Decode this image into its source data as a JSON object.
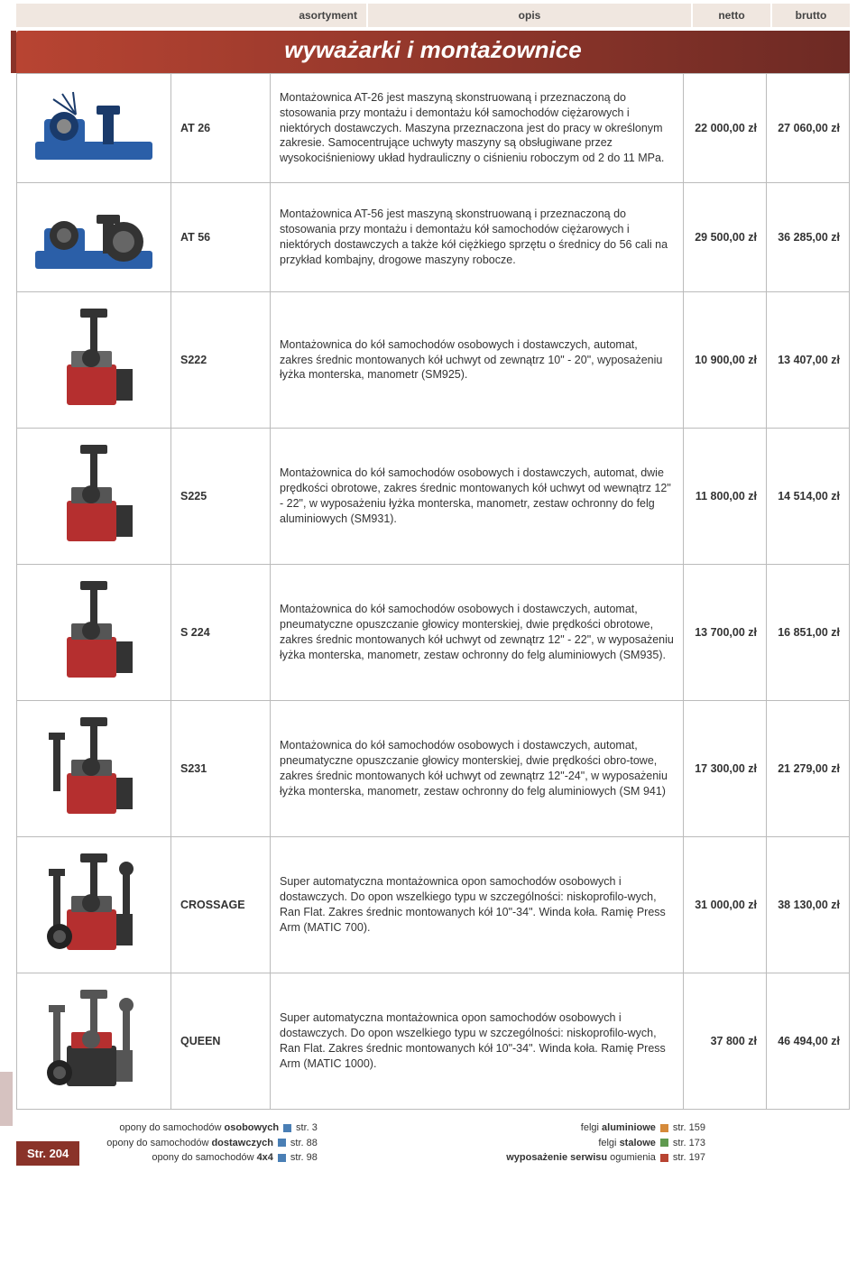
{
  "header": {
    "asortyment": "asortyment",
    "opis": "opis",
    "netto": "netto",
    "brutto": "brutto"
  },
  "section_title": "wyważarki i montażownice",
  "rows": [
    {
      "code": "AT 26",
      "desc": "Montażownica AT-26 jest maszyną skonstruowaną i przeznaczoną do stosowania przy montażu i demontażu kół samochodów ciężarowych i niektórych dostawczych. Maszyna przeznaczona jest do pracy w określonym zakresie. Samocentrujące uchwyty maszyny są obsługiwane przez wysokociśnieniowy układ hydrauliczny o ciśnieniu roboczym od 2 do 11 MPa.",
      "netto": "22 000,00 zł",
      "brutto": "27 060,00 zł",
      "img_colors": [
        "#2b5fa8",
        "#1a3a6a",
        "#888"
      ]
    },
    {
      "code": "AT 56",
      "desc": "Montażownica AT-56 jest maszyną skonstruowaną i przeznaczoną do stosowania przy montażu i demontażu kół samochodów ciężarowych i niektórych dostawczych a także kół ciężkiego sprzętu o średnicy do 56 cali na przykład kombajny, drogowe maszyny robocze.",
      "netto": "29 500,00 zł",
      "brutto": "36 285,00 zł",
      "img_colors": [
        "#2b5fa8",
        "#333",
        "#666"
      ]
    },
    {
      "code": "S222",
      "desc": "Montażownica do kół samochodów osobowych i dostawczych, automat, zakres średnic montowanych kół uchwyt od zewnątrz 10\" - 20\", wyposażeniu łyżka monterska, manometr (SM925).",
      "netto": "10 900,00 zł",
      "brutto": "13 407,00 zł",
      "img_colors": [
        "#b52f2f",
        "#333",
        "#666"
      ]
    },
    {
      "code": "S225",
      "desc": "Montażownica do kół samochodów osobowych i dostawczych, automat, dwie prędkości obrotowe, zakres średnic montowanych kół uchwyt od wewnątrz 12\" - 22\", w wyposażeniu łyżka monterska, manometr, zestaw ochronny do felg aluminiowych (SM931).",
      "netto": "11 800,00 zł",
      "brutto": "14 514,00 zł",
      "img_colors": [
        "#b52f2f",
        "#333",
        "#555"
      ]
    },
    {
      "code": "S 224",
      "desc": "Montażownica do kół samochodów osobowych i dostawczych, automat, pneumatyczne opuszczanie głowicy monterskiej, dwie prędkości obrotowe, zakres średnic montowanych kół uchwyt od zewnątrz 12\" - 22\", w wyposażeniu łyżka monterska, manometr, zestaw ochronny do felg aluminiowych (SM935).",
      "netto": "13 700,00 zł",
      "brutto": "16 851,00 zł",
      "img_colors": [
        "#b52f2f",
        "#333",
        "#555"
      ]
    },
    {
      "code": "S231",
      "desc": "Montażownica do kół samochodów osobowych i dostawczych, automat, pneumatyczne opuszczanie głowicy monterskiej, dwie prędkości obro-towe, zakres średnic montowanych kół uchwyt od zewnątrz 12\"-24\", w wyposażeniu łyżka monterska, manometr, zestaw ochronny do felg aluminiowych (SM 941)",
      "netto": "17 300,00 zł",
      "brutto": "21 279,00 zł",
      "img_colors": [
        "#b52f2f",
        "#333",
        "#555"
      ]
    },
    {
      "code": "CROSSAGE",
      "desc": "Super automatyczna montażownica opon samochodów osobowych i dostawczych. Do opon wszelkiego typu w szczególności: niskoprofilo-wych, Ran Flat. Zakres średnic montowanych kół 10\"-34\". Winda koła. Ramię Press Arm (MATIC 700).",
      "netto": "31 000,00 zł",
      "brutto": "38 130,00 zł",
      "img_colors": [
        "#b52f2f",
        "#333",
        "#555"
      ]
    },
    {
      "code": "QUEEN",
      "desc": "Super automatyczna montażownica opon samochodów osobowych i dostawczych. Do opon wszelkiego typu w szczególności: niskoprofilo-wych, Ran Flat. Zakres średnic montowanych kół 10\"-34\". Winda koła. Ramię Press Arm (MATIC 1000).",
      "netto": "37 800 zł",
      "brutto": "46 494,00 zł",
      "img_colors": [
        "#333",
        "#555",
        "#b52f2f"
      ]
    }
  ],
  "footer": {
    "page_label": "Str. 204",
    "left": [
      {
        "text": "opony do samochodów osobowych",
        "sq": "sq-blue",
        "page": "str. 3"
      },
      {
        "text": "opony do samochodów dostawczych",
        "sq": "sq-blue",
        "page": "str. 88"
      },
      {
        "text": "opony do samochodów 4x4",
        "sq": "sq-blue",
        "page": "str. 98"
      }
    ],
    "right": [
      {
        "text": "felgi aluminiowe",
        "sq": "sq-orange",
        "page": "str. 159"
      },
      {
        "text": "felgi stalowe",
        "sq": "sq-green",
        "page": "str. 173"
      },
      {
        "text": "wyposażenie serwisu ogumienia",
        "sq": "sq-red",
        "page": "str. 197"
      }
    ]
  }
}
